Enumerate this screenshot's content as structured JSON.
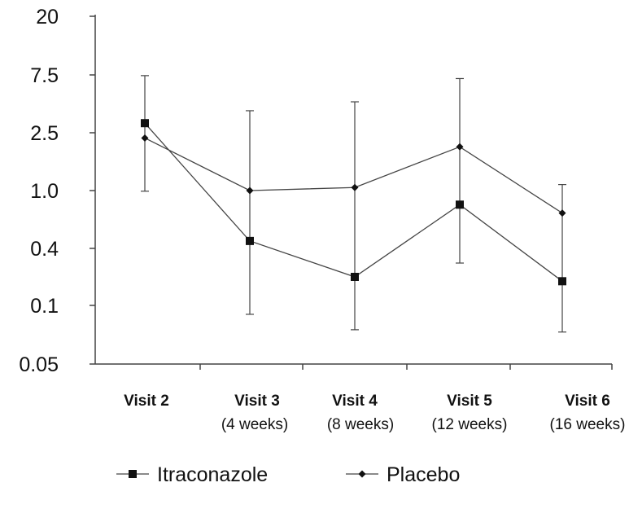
{
  "chart_data": {
    "type": "line",
    "categories": [
      {
        "main": "Visit 2",
        "sub": ""
      },
      {
        "main": "Visit 3",
        "sub": "(4 weeks)"
      },
      {
        "main": "Visit 4",
        "sub": "(8 weeks)"
      },
      {
        "main": "Visit 5",
        "sub": "(12 weeks)"
      },
      {
        "main": "Visit 6",
        "sub": "(16 weeks)"
      }
    ],
    "y_ticks": [
      {
        "label": "20",
        "value": 20
      },
      {
        "label": "7.5",
        "value": 7.5
      },
      {
        "label": "2.5",
        "value": 2.5
      },
      {
        "label": "1.0",
        "value": 1.0
      },
      {
        "label": "0.4",
        "value": 0.4
      },
      {
        "label": "0.1",
        "value": 0.1
      },
      {
        "label": "0.05",
        "value": 0.05
      }
    ],
    "y_scale": "tick-spaced (non-linear)",
    "series": [
      {
        "name": "Itraconazole",
        "marker": "square",
        "values": [
          3.0,
          0.45,
          0.2,
          0.8,
          0.18
        ],
        "error_low": null,
        "error_high": null
      },
      {
        "name": "Placebo",
        "marker": "diamond",
        "values": [
          2.3,
          1.0,
          1.05,
          2.0,
          0.7
        ],
        "error_low": [
          0.99,
          0.09,
          0.075,
          0.28,
          0.073
        ],
        "error_high": [
          7.4,
          3.8,
          4.5,
          7.0,
          1.1
        ]
      }
    ],
    "error_bar_series_indices": [
      {
        "series": 1,
        "category": 0
      },
      {
        "series": 1,
        "category": 1
      },
      {
        "series": 1,
        "category": 2
      },
      {
        "series": 1,
        "category": 3
      },
      {
        "series": 1,
        "category": 4
      }
    ],
    "legend_position": "bottom",
    "grid": false,
    "title": "",
    "xlabel": "",
    "ylabel": "",
    "colors": {
      "line": "#444444",
      "marker": "#111111",
      "axis": "#444444"
    }
  }
}
